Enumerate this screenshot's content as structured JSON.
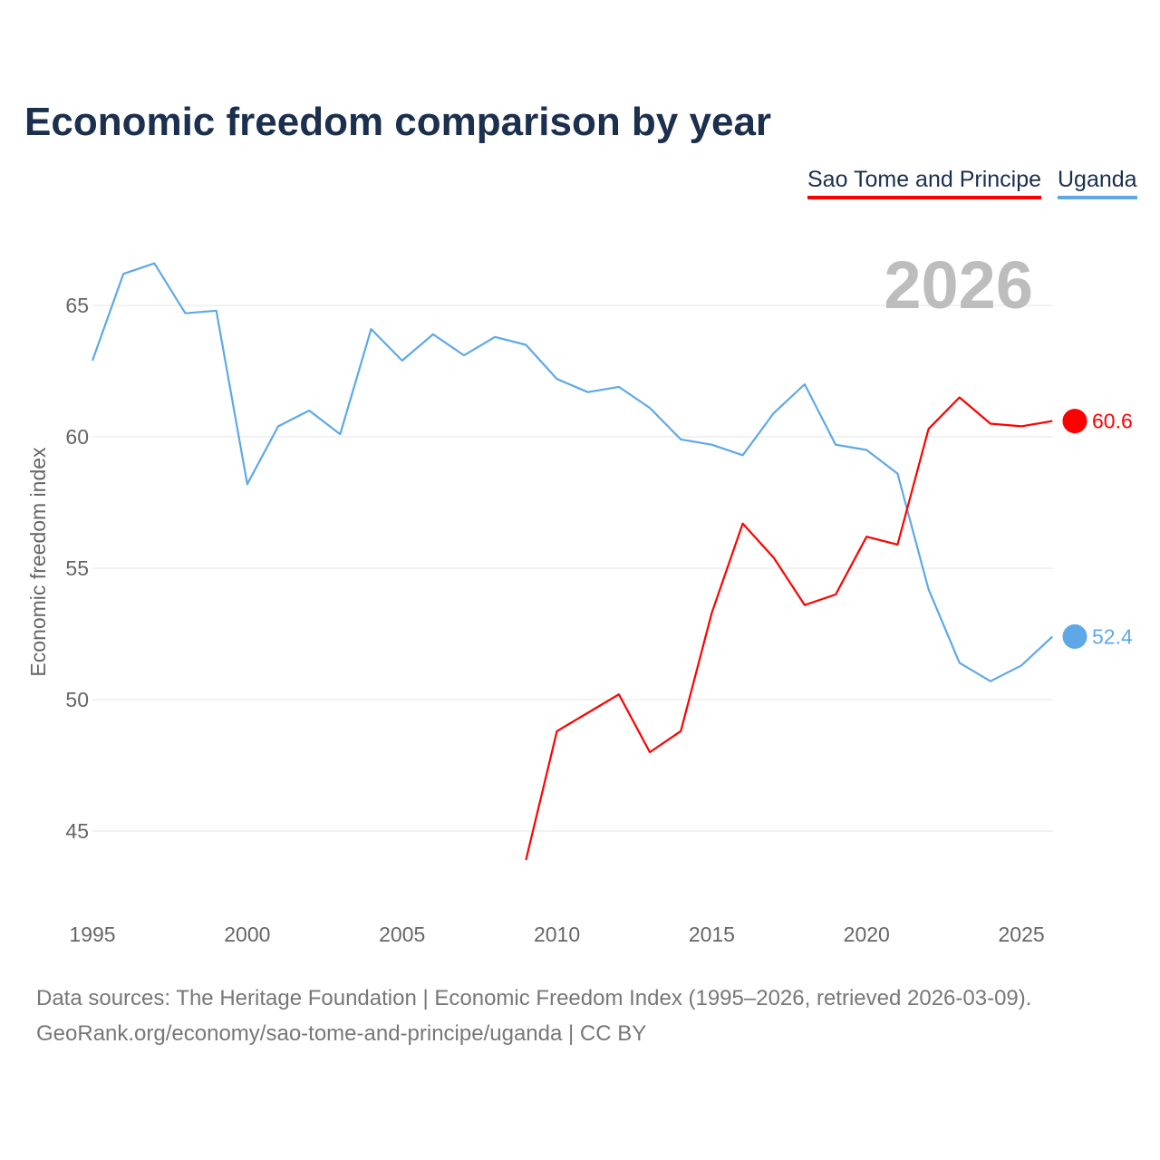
{
  "chart_data": {
    "type": "line",
    "title": "Economic freedom comparison by year",
    "ylabel": "Economic freedom index",
    "xlabel": "",
    "ylim": [
      43.5,
      67.5
    ],
    "xlim": [
      1995,
      2026
    ],
    "yticks": [
      45,
      50,
      55,
      60,
      65
    ],
    "xticks": [
      1995,
      2000,
      2005,
      2010,
      2015,
      2020,
      2025
    ],
    "grid": true,
    "legend_position": "top-right",
    "year_watermark": "2026",
    "series": [
      {
        "name": "Sao Tome and Principe",
        "color": "#ff0000",
        "end_label": "60.6",
        "x": [
          2009,
          2010,
          2011,
          2012,
          2013,
          2014,
          2015,
          2016,
          2017,
          2018,
          2019,
          2020,
          2021,
          2022,
          2023,
          2024,
          2025,
          2026
        ],
        "values": [
          43.9,
          48.8,
          49.5,
          50.2,
          48.0,
          48.8,
          53.3,
          56.7,
          55.4,
          53.6,
          54.0,
          56.2,
          55.9,
          60.3,
          61.5,
          60.5,
          60.4,
          60.6
        ]
      },
      {
        "name": "Uganda",
        "color": "#5fa8e8",
        "end_label": "52.4",
        "x": [
          1995,
          1996,
          1997,
          1998,
          1999,
          2000,
          2001,
          2002,
          2003,
          2004,
          2005,
          2006,
          2007,
          2008,
          2009,
          2010,
          2011,
          2012,
          2013,
          2014,
          2015,
          2016,
          2017,
          2018,
          2019,
          2020,
          2021,
          2022,
          2023,
          2024,
          2025,
          2026
        ],
        "values": [
          62.9,
          66.2,
          66.6,
          64.7,
          64.8,
          58.2,
          60.4,
          61.0,
          60.1,
          64.1,
          62.9,
          63.9,
          63.1,
          63.8,
          63.5,
          62.2,
          61.7,
          61.9,
          61.1,
          59.9,
          59.7,
          59.3,
          60.9,
          62.0,
          59.7,
          59.5,
          58.6,
          54.2,
          51.4,
          50.7,
          51.3,
          52.4
        ]
      }
    ]
  },
  "footer": {
    "line1": "Data sources: The Heritage Foundation | Economic Freedom Index (1995–2026, retrieved 2026-03-09).",
    "line2": "GeoRank.org/economy/sao-tome-and-principe/uganda | CC BY"
  }
}
